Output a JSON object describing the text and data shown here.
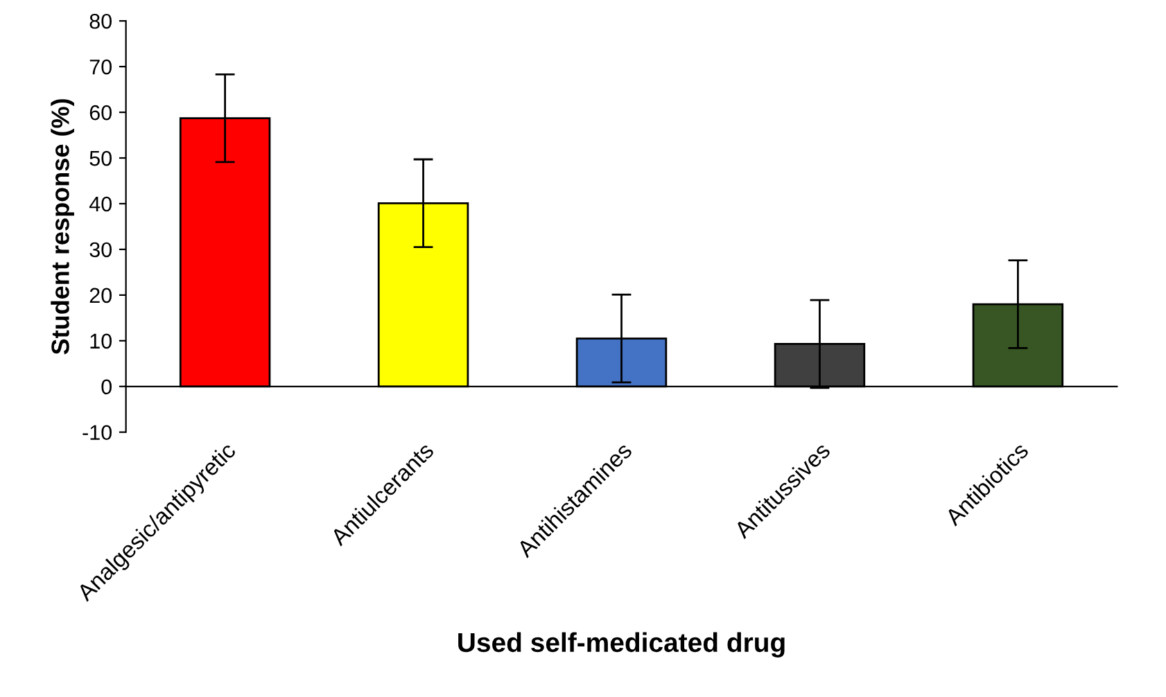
{
  "chart_data": {
    "type": "bar",
    "xlabel": "Used self-medicated drug",
    "ylabel": "Student response (%)",
    "categories": [
      "Analgesic/antipyretic",
      "Antiulcerants",
      "Antihistamines",
      "Antitussives",
      "Antibiotics"
    ],
    "values": [
      58.7,
      40.1,
      10.5,
      9.3,
      18.0
    ],
    "errors": [
      9.6,
      9.6,
      9.6,
      9.6,
      9.6
    ],
    "colors": [
      "#ff0000",
      "#ffff00",
      "#4472c4",
      "#404040",
      "#375623"
    ],
    "ylim": [
      -10,
      80
    ],
    "yticks": [
      -10,
      0,
      10,
      20,
      30,
      40,
      50,
      60,
      70,
      80
    ],
    "grid": false
  }
}
